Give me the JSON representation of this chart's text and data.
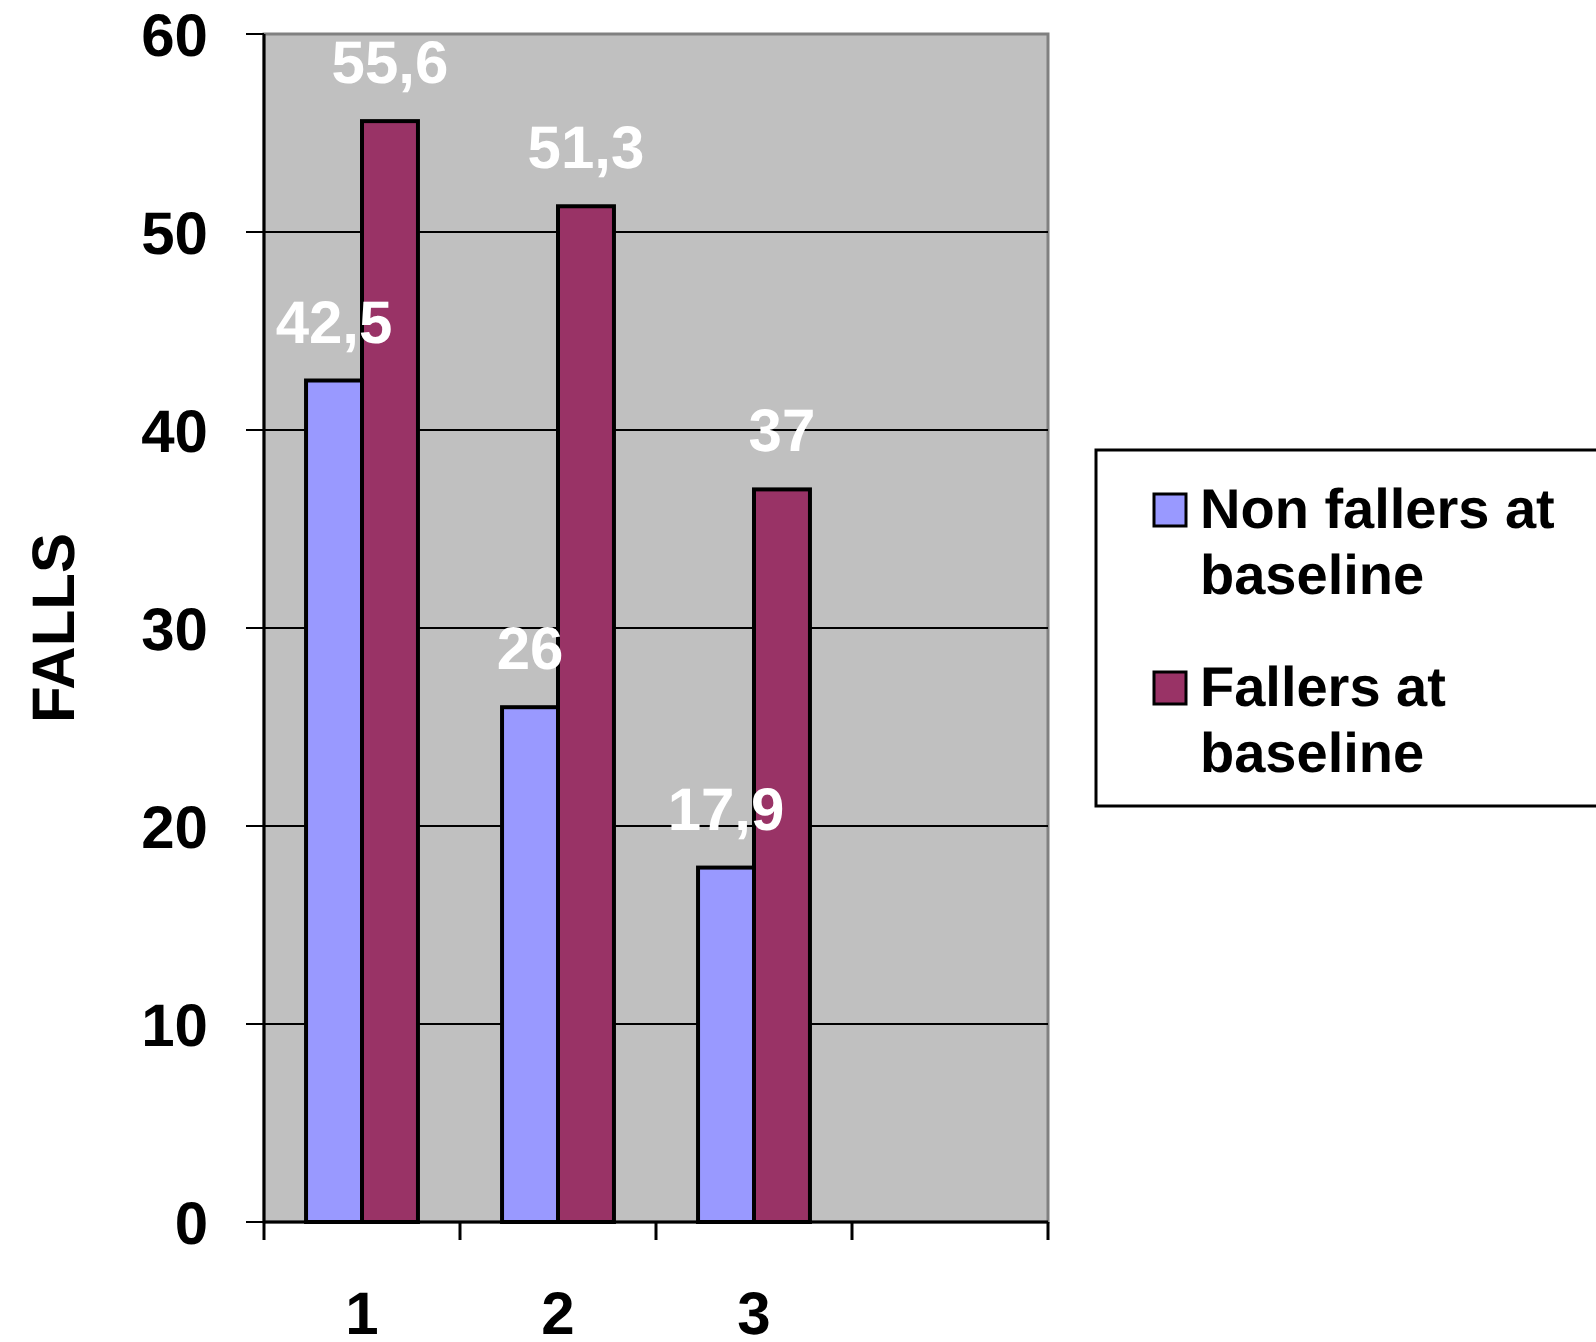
{
  "chart_data": {
    "type": "bar",
    "ylabel": "FALLS",
    "categories": [
      "1",
      "2",
      "3",
      null
    ],
    "series": [
      {
        "name": "Non fallers at baseline",
        "color": "#9999ff",
        "values": [
          42.5,
          26,
          17.9,
          null
        ],
        "value_labels": [
          "42,5",
          "26",
          "17,9",
          null
        ]
      },
      {
        "name": "Fallers at baseline",
        "color": "#993366",
        "values": [
          55.6,
          51.3,
          37,
          null
        ],
        "value_labels": [
          "55,6",
          "51,3",
          "37",
          null
        ]
      }
    ],
    "ylim": [
      0,
      60
    ],
    "yticks": [
      0,
      10,
      20,
      30,
      40,
      50,
      60
    ],
    "grid": "y",
    "legend": "right"
  }
}
